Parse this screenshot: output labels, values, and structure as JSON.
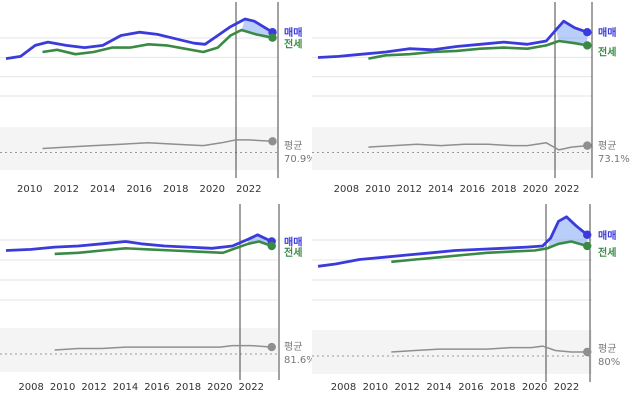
{
  "colors": {
    "sale": "#3b3bdc",
    "jeonse": "#3a8a46",
    "ratio": "#8f8f8f",
    "band_fill": "#dcdcdc",
    "grid": "#e6e6e6",
    "vline": "#444444",
    "text": "#333333",
    "label_ratio": "#777777"
  },
  "chart_data": [
    {
      "type": "line",
      "x_ticks": [
        "2010",
        "2012",
        "2014",
        "2016",
        "2018",
        "2020",
        "2022"
      ],
      "x_range": [
        2008.7,
        2023.6
      ],
      "series": [
        {
          "name": "매매",
          "points": [
            [
              2008.7,
              34
            ],
            [
              2009.5,
              36
            ],
            [
              2010.3,
              46
            ],
            [
              2011.0,
              49
            ],
            [
              2012.0,
              46
            ],
            [
              2013.0,
              44
            ],
            [
              2014.0,
              46
            ],
            [
              2015.0,
              55
            ],
            [
              2016.0,
              58
            ],
            [
              2017.0,
              56
            ],
            [
              2018.0,
              52
            ],
            [
              2019.0,
              48
            ],
            [
              2019.6,
              47
            ],
            [
              2020.3,
              55
            ],
            [
              2021.0,
              63
            ],
            [
              2021.8,
              70
            ],
            [
              2022.3,
              68
            ],
            [
              2022.9,
              62
            ],
            [
              2023.3,
              58
            ]
          ]
        },
        {
          "name": "전세",
          "points": [
            [
              2010.7,
              40
            ],
            [
              2011.5,
              42
            ],
            [
              2012.5,
              38
            ],
            [
              2013.5,
              40
            ],
            [
              2014.5,
              44
            ],
            [
              2015.5,
              44
            ],
            [
              2016.5,
              47
            ],
            [
              2017.5,
              46
            ],
            [
              2018.5,
              43
            ],
            [
              2019.5,
              40
            ],
            [
              2020.3,
              44
            ],
            [
              2021.0,
              55
            ],
            [
              2021.6,
              60
            ],
            [
              2022.4,
              56
            ],
            [
              2023.3,
              53
            ]
          ]
        },
        {
          "name": "평균",
          "points": [
            [
              2010.7,
              15
            ],
            [
              2012.0,
              16
            ],
            [
              2013.5,
              17
            ],
            [
              2015.0,
              18
            ],
            [
              2016.5,
              19
            ],
            [
              2018.0,
              18
            ],
            [
              2019.5,
              17
            ],
            [
              2020.5,
              19
            ],
            [
              2021.3,
              21
            ],
            [
              2022.0,
              21
            ],
            [
              2023.3,
              20
            ]
          ]
        }
      ],
      "labels": {
        "sale": "매매",
        "jeonse": "전세",
        "avg": "평균",
        "avg_value": "70.9%"
      }
    },
    {
      "type": "line",
      "x_ticks": [
        "2008",
        "2010",
        "2012",
        "2014",
        "2016",
        "2018",
        "2020",
        "2022"
      ],
      "x_range": [
        2006.2,
        2023.6
      ],
      "series": [
        {
          "name": "매매",
          "points": [
            [
              2006.2,
              35
            ],
            [
              2007.5,
              36
            ],
            [
              2009.0,
              38
            ],
            [
              2010.5,
              40
            ],
            [
              2012.0,
              43
            ],
            [
              2013.5,
              42
            ],
            [
              2015.0,
              45
            ],
            [
              2016.5,
              47
            ],
            [
              2018.0,
              49
            ],
            [
              2019.5,
              47
            ],
            [
              2020.7,
              50
            ],
            [
              2021.3,
              60
            ],
            [
              2021.8,
              68
            ],
            [
              2022.5,
              62
            ],
            [
              2023.3,
              58
            ]
          ]
        },
        {
          "name": "전세",
          "points": [
            [
              2009.4,
              34
            ],
            [
              2010.5,
              37
            ],
            [
              2012.0,
              38
            ],
            [
              2013.5,
              40
            ],
            [
              2015.0,
              41
            ],
            [
              2016.5,
              43
            ],
            [
              2018.0,
              44
            ],
            [
              2019.5,
              43
            ],
            [
              2020.7,
              46
            ],
            [
              2021.5,
              50
            ],
            [
              2022.5,
              48
            ],
            [
              2023.3,
              46
            ]
          ]
        },
        {
          "name": "평균",
          "points": [
            [
              2009.4,
              16
            ],
            [
              2011.0,
              17
            ],
            [
              2012.5,
              18
            ],
            [
              2014.0,
              17
            ],
            [
              2015.5,
              18
            ],
            [
              2017.0,
              18
            ],
            [
              2018.5,
              17
            ],
            [
              2019.5,
              17
            ],
            [
              2020.7,
              19
            ],
            [
              2021.5,
              14
            ],
            [
              2022.3,
              16
            ],
            [
              2023.3,
              17
            ]
          ]
        }
      ],
      "labels": {
        "sale": "매매",
        "jeonse": "전세",
        "avg": "평균",
        "avg_value": "73.1%"
      }
    },
    {
      "type": "line",
      "x_ticks": [
        "2008",
        "2010",
        "2012",
        "2014",
        "2016",
        "2018",
        "2020",
        "2022"
      ],
      "x_range": [
        2006.4,
        2023.7
      ],
      "series": [
        {
          "name": "매매",
          "points": [
            [
              2006.4,
              44
            ],
            [
              2008.0,
              45
            ],
            [
              2009.5,
              47
            ],
            [
              2011.0,
              48
            ],
            [
              2012.5,
              50
            ],
            [
              2014.0,
              52
            ],
            [
              2015.0,
              50
            ],
            [
              2016.5,
              48
            ],
            [
              2018.0,
              47
            ],
            [
              2019.5,
              46
            ],
            [
              2020.8,
              48
            ],
            [
              2021.8,
              54
            ],
            [
              2022.4,
              58
            ],
            [
              2023.3,
              52
            ]
          ]
        },
        {
          "name": "전세",
          "points": [
            [
              2009.5,
              41
            ],
            [
              2011.0,
              42
            ],
            [
              2012.5,
              44
            ],
            [
              2014.0,
              46
            ],
            [
              2015.5,
              45
            ],
            [
              2017.0,
              44
            ],
            [
              2018.5,
              43
            ],
            [
              2020.2,
              42
            ],
            [
              2020.8,
              45
            ],
            [
              2021.8,
              50
            ],
            [
              2022.5,
              52
            ],
            [
              2023.3,
              48
            ]
          ]
        },
        {
          "name": "평균",
          "points": [
            [
              2009.5,
              15
            ],
            [
              2011.0,
              16
            ],
            [
              2012.5,
              16
            ],
            [
              2014.0,
              17
            ],
            [
              2015.5,
              17
            ],
            [
              2017.0,
              17
            ],
            [
              2018.5,
              17
            ],
            [
              2020.0,
              17
            ],
            [
              2020.8,
              18
            ],
            [
              2022.0,
              18
            ],
            [
              2023.3,
              17
            ]
          ]
        }
      ],
      "labels": {
        "sale": "매매",
        "jeonse": "전세",
        "avg": "평균",
        "avg_value": "81.6%"
      }
    },
    {
      "type": "line",
      "x_ticks": [
        "2008",
        "2010",
        "2012",
        "2014",
        "2016",
        "2018",
        "2020",
        "2022"
      ],
      "x_range": [
        2006.4,
        2023.6
      ],
      "series": [
        {
          "name": "매매",
          "points": [
            [
              2006.4,
              30
            ],
            [
              2007.5,
              32
            ],
            [
              2009.0,
              36
            ],
            [
              2010.5,
              38
            ],
            [
              2012.0,
              40
            ],
            [
              2013.5,
              42
            ],
            [
              2015.0,
              44
            ],
            [
              2016.5,
              45
            ],
            [
              2018.0,
              46
            ],
            [
              2019.5,
              47
            ],
            [
              2020.5,
              48
            ],
            [
              2021.0,
              55
            ],
            [
              2021.5,
              70
            ],
            [
              2022.0,
              74
            ],
            [
              2022.6,
              66
            ],
            [
              2023.3,
              58
            ]
          ]
        },
        {
          "name": "전세",
          "points": [
            [
              2011.0,
              34
            ],
            [
              2012.5,
              36
            ],
            [
              2014.0,
              38
            ],
            [
              2015.5,
              40
            ],
            [
              2017.0,
              42
            ],
            [
              2018.5,
              43
            ],
            [
              2020.0,
              44
            ],
            [
              2020.8,
              46
            ],
            [
              2021.5,
              50
            ],
            [
              2022.3,
              52
            ],
            [
              2023.3,
              48
            ]
          ]
        },
        {
          "name": "평균",
          "points": [
            [
              2011.0,
              15
            ],
            [
              2012.5,
              16
            ],
            [
              2014.0,
              17
            ],
            [
              2015.5,
              17
            ],
            [
              2017.0,
              17
            ],
            [
              2018.5,
              18
            ],
            [
              2019.8,
              18
            ],
            [
              2020.5,
              19
            ],
            [
              2021.3,
              16
            ],
            [
              2022.3,
              15
            ],
            [
              2023.3,
              15
            ]
          ]
        }
      ],
      "labels": {
        "sale": "매매",
        "jeonse": "전세",
        "avg": "평균",
        "avg_value": "80%"
      }
    }
  ]
}
